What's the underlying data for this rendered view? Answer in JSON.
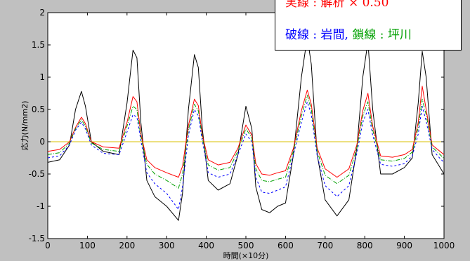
{
  "chart_data": {
    "type": "line",
    "title": "",
    "xlabel": "時間(×10分)",
    "ylabel": "応力(N/mm2)",
    "xlim": [
      0,
      1000
    ],
    "ylim": [
      -1.5,
      2
    ],
    "xticks": [
      "0",
      "100",
      "200",
      "300",
      "400",
      "500",
      "600",
      "700",
      "800",
      "900",
      "1000"
    ],
    "yticks": [
      "-1.5",
      "-1",
      "-0.5",
      "0",
      "0.5",
      "1",
      "1.5",
      "2"
    ],
    "grid": false,
    "legend_placement": "top-right",
    "legend": {
      "line1": "実線 : 解析 × 0.50",
      "line2_a": "破線 : 岩間,",
      "line2_b": "鎖線 : 坪川"
    },
    "reference_line": {
      "y": 0,
      "color": "#d8c000"
    },
    "series": [
      {
        "color": "#000000",
        "style": "solid",
        "x": [
          0,
          30,
          55,
          70,
          85,
          95,
          110,
          140,
          180,
          200,
          215,
          225,
          235,
          250,
          270,
          300,
          330,
          340,
          355,
          370,
          380,
          390,
          405,
          430,
          460,
          480,
          500,
          515,
          525,
          540,
          560,
          580,
          600,
          620,
          640,
          655,
          665,
          680,
          700,
          730,
          760,
          780,
          795,
          808,
          820,
          840,
          870,
          900,
          920,
          935,
          945,
          955,
          970,
          990,
          1000
        ],
        "y": [
          -0.32,
          -0.28,
          -0.05,
          0.5,
          0.78,
          0.55,
          0.0,
          -0.15,
          -0.2,
          0.6,
          1.42,
          1.3,
          0.3,
          -0.6,
          -0.85,
          -1.0,
          -1.22,
          -0.8,
          0.5,
          1.35,
          1.15,
          0.2,
          -0.6,
          -0.75,
          -0.65,
          -0.2,
          0.55,
          0.2,
          -0.7,
          -1.05,
          -1.1,
          -1.0,
          -0.95,
          -0.2,
          1.0,
          1.62,
          1.2,
          -0.2,
          -0.9,
          -1.15,
          -0.9,
          -0.1,
          1.0,
          1.55,
          0.5,
          -0.5,
          -0.5,
          -0.4,
          -0.25,
          0.6,
          1.4,
          1.0,
          -0.2,
          -0.4,
          -0.5
        ]
      },
      {
        "color": "#ff0000",
        "style": "solid",
        "x": [
          0,
          30,
          55,
          70,
          85,
          95,
          110,
          140,
          180,
          200,
          215,
          225,
          235,
          250,
          270,
          300,
          330,
          340,
          355,
          370,
          380,
          390,
          405,
          430,
          460,
          480,
          500,
          515,
          525,
          540,
          560,
          580,
          600,
          620,
          640,
          655,
          665,
          680,
          700,
          730,
          760,
          780,
          795,
          808,
          820,
          840,
          870,
          900,
          920,
          935,
          945,
          955,
          970,
          990,
          1000
        ],
        "y": [
          -0.15,
          -0.12,
          0.0,
          0.22,
          0.38,
          0.28,
          0.0,
          -0.08,
          -0.1,
          0.3,
          0.7,
          0.62,
          0.12,
          -0.28,
          -0.4,
          -0.48,
          -0.55,
          -0.38,
          0.25,
          0.66,
          0.56,
          0.1,
          -0.28,
          -0.36,
          -0.32,
          -0.1,
          0.26,
          0.1,
          -0.34,
          -0.5,
          -0.52,
          -0.48,
          -0.45,
          -0.1,
          0.48,
          0.8,
          0.58,
          -0.1,
          -0.42,
          -0.55,
          -0.42,
          -0.05,
          0.48,
          0.75,
          0.24,
          -0.22,
          -0.24,
          -0.2,
          -0.12,
          0.3,
          0.86,
          0.5,
          -0.05,
          -0.15,
          -0.2
        ]
      },
      {
        "color": "#00a000",
        "style": "dashdot",
        "x": [
          0,
          30,
          55,
          70,
          85,
          95,
          110,
          140,
          180,
          200,
          215,
          225,
          235,
          250,
          270,
          300,
          330,
          340,
          355,
          370,
          380,
          390,
          405,
          430,
          460,
          480,
          500,
          515,
          525,
          540,
          560,
          580,
          600,
          620,
          640,
          655,
          665,
          680,
          700,
          730,
          760,
          780,
          795,
          808,
          820,
          840,
          870,
          900,
          920,
          935,
          945,
          955,
          970,
          990,
          1000
        ],
        "y": [
          -0.2,
          -0.17,
          -0.02,
          0.2,
          0.34,
          0.24,
          -0.02,
          -0.12,
          -0.15,
          0.24,
          0.55,
          0.5,
          0.08,
          -0.35,
          -0.5,
          -0.6,
          -0.72,
          -0.5,
          0.18,
          0.58,
          0.48,
          0.06,
          -0.36,
          -0.44,
          -0.4,
          -0.14,
          0.2,
          0.06,
          -0.42,
          -0.6,
          -0.62,
          -0.58,
          -0.55,
          -0.14,
          0.4,
          0.72,
          0.5,
          -0.15,
          -0.52,
          -0.65,
          -0.52,
          -0.1,
          0.4,
          0.62,
          0.18,
          -0.28,
          -0.3,
          -0.26,
          -0.16,
          0.22,
          0.66,
          0.42,
          -0.08,
          -0.2,
          -0.26
        ]
      },
      {
        "color": "#0000ff",
        "style": "dashed",
        "x": [
          0,
          30,
          55,
          70,
          85,
          95,
          110,
          140,
          180,
          200,
          215,
          225,
          235,
          250,
          270,
          300,
          330,
          340,
          355,
          370,
          380,
          390,
          405,
          430,
          460,
          480,
          500,
          515,
          525,
          540,
          560,
          580,
          600,
          620,
          640,
          655,
          665,
          680,
          700,
          730,
          760,
          780,
          795,
          808,
          820,
          840,
          870,
          900,
          920,
          935,
          945,
          955,
          970,
          990,
          1000
        ],
        "y": [
          -0.25,
          -0.22,
          -0.05,
          0.18,
          0.3,
          0.2,
          -0.05,
          -0.18,
          -0.2,
          0.15,
          0.42,
          0.38,
          0.02,
          -0.48,
          -0.65,
          -0.8,
          -1.05,
          -0.7,
          0.1,
          0.5,
          0.4,
          0.02,
          -0.48,
          -0.55,
          -0.5,
          -0.2,
          0.12,
          0.0,
          -0.55,
          -0.78,
          -0.8,
          -0.75,
          -0.7,
          -0.2,
          0.3,
          0.62,
          0.42,
          -0.22,
          -0.68,
          -0.85,
          -0.68,
          -0.18,
          0.3,
          0.5,
          0.1,
          -0.35,
          -0.38,
          -0.34,
          -0.22,
          0.12,
          0.55,
          0.32,
          -0.12,
          -0.26,
          -0.32
        ]
      }
    ]
  }
}
